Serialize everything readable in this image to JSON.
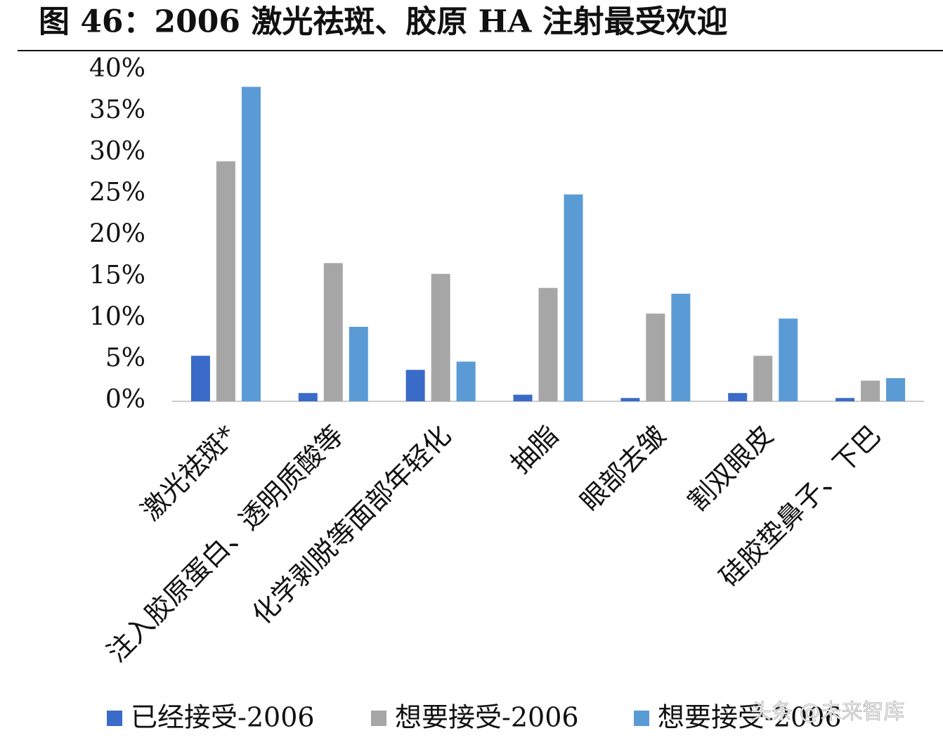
{
  "chart_data": {
    "type": "bar",
    "title": "图 46：2006 激光祛斑、胶原 HA 注射最受欢迎",
    "categories": [
      "激光祛斑*",
      "注入胶原蛋白、透明质酸等",
      "化学剥脱等面部年轻化",
      "抽脂",
      "眼部去皱",
      "割双眼皮",
      "硅胶垫鼻子、下巴"
    ],
    "series": [
      {
        "name": "已经接受-2006",
        "color": "#3a6bc8",
        "values": [
          5.5,
          1,
          3.8,
          0.8,
          0.4,
          1,
          0.4
        ]
      },
      {
        "name": "想要接受-2006",
        "color": "#a6a6a6",
        "values": [
          29,
          16.7,
          15.4,
          13.7,
          10.6,
          5.5,
          2.5
        ]
      },
      {
        "name": "想要接受-2006",
        "color": "#5b9bd5",
        "values": [
          38,
          9,
          4.8,
          25,
          13,
          10,
          2.8
        ]
      }
    ],
    "ylim": [
      0,
      40
    ],
    "yticks": [
      {
        "value": 0,
        "label": "0%"
      },
      {
        "value": 5,
        "label": "5%"
      },
      {
        "value": 10,
        "label": "10%"
      },
      {
        "value": 15,
        "label": "15%"
      },
      {
        "value": 20,
        "label": "20%"
      },
      {
        "value": 25,
        "label": "25%"
      },
      {
        "value": 30,
        "label": "30%"
      },
      {
        "value": 35,
        "label": "35%"
      },
      {
        "value": 40,
        "label": "40%"
      }
    ],
    "grid": false,
    "legend": "bottom"
  },
  "watermark": "头条 @未来智库"
}
